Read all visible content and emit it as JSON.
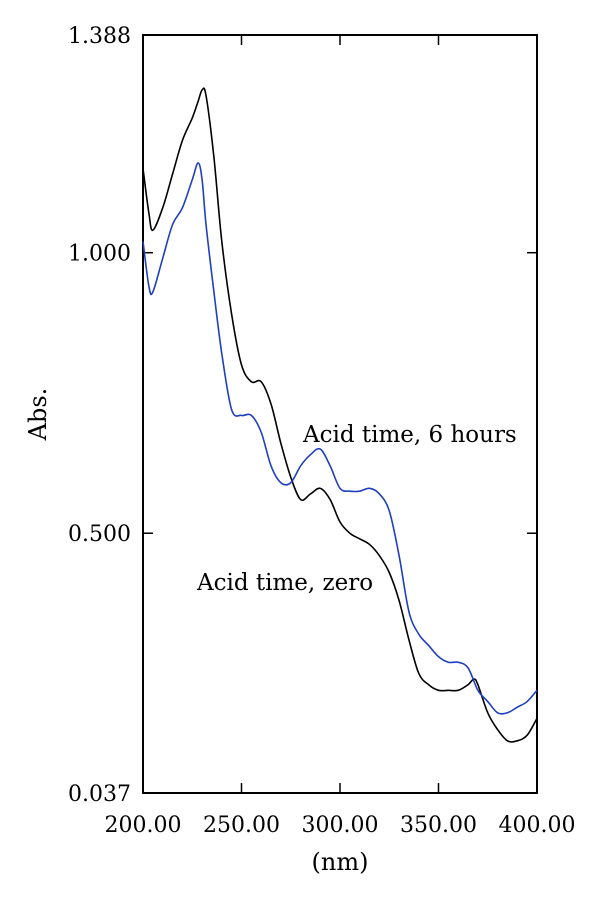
{
  "chart_data": {
    "type": "line",
    "xlabel": "(nm)",
    "ylabel": "Abs.",
    "xlim": [
      200,
      400
    ],
    "ylim": [
      0.037,
      1.388
    ],
    "x_ticks": [
      "200.00",
      "250.00",
      "300.00",
      "350.00",
      "400.00"
    ],
    "y_ticks": [
      "1.388",
      "1.000",
      "0.500",
      "0.037"
    ],
    "y_tick_values": [
      1.388,
      1.0,
      0.5,
      0.037
    ],
    "grid": false,
    "annotations": [
      {
        "text": "Acid time, 6 hours",
        "x": 290,
        "y": 0.625
      },
      {
        "text": "Acid time, zero",
        "x": 250,
        "y": 0.395
      }
    ],
    "series": [
      {
        "color": "#000000",
        "x": [
          200,
          203,
          205,
          210,
          215,
          220,
          225,
          228,
          230,
          232,
          236,
          240,
          245,
          250,
          255,
          260,
          265,
          270,
          275,
          280,
          285,
          290,
          295,
          300,
          305,
          310,
          315,
          320,
          325,
          330,
          335,
          340,
          345,
          350,
          355,
          360,
          365,
          368,
          370,
          375,
          380,
          385,
          390,
          395,
          400
        ],
        "y": [
          1.15,
          1.07,
          1.04,
          1.08,
          1.14,
          1.2,
          1.24,
          1.27,
          1.29,
          1.28,
          1.17,
          1.02,
          0.89,
          0.8,
          0.77,
          0.77,
          0.73,
          0.66,
          0.6,
          0.56,
          0.57,
          0.58,
          0.56,
          0.52,
          0.5,
          0.49,
          0.48,
          0.46,
          0.43,
          0.38,
          0.31,
          0.25,
          0.23,
          0.22,
          0.22,
          0.22,
          0.23,
          0.24,
          0.23,
          0.18,
          0.15,
          0.13,
          0.13,
          0.14,
          0.17
        ]
      },
      {
        "color": "#1f3fbf",
        "x": [
          200,
          203,
          205,
          210,
          215,
          220,
          225,
          228,
          230,
          232,
          236,
          240,
          245,
          250,
          255,
          260,
          265,
          270,
          275,
          280,
          285,
          290,
          295,
          300,
          305,
          310,
          315,
          320,
          325,
          330,
          335,
          340,
          345,
          350,
          355,
          360,
          365,
          370,
          375,
          380,
          385,
          390,
          395,
          400
        ],
        "y": [
          1.02,
          0.94,
          0.93,
          0.99,
          1.05,
          1.08,
          1.13,
          1.16,
          1.13,
          1.05,
          0.93,
          0.82,
          0.72,
          0.71,
          0.71,
          0.68,
          0.62,
          0.59,
          0.59,
          0.62,
          0.64,
          0.65,
          0.62,
          0.58,
          0.575,
          0.575,
          0.58,
          0.57,
          0.54,
          0.46,
          0.36,
          0.32,
          0.3,
          0.28,
          0.27,
          0.27,
          0.26,
          0.22,
          0.2,
          0.18,
          0.18,
          0.19,
          0.2,
          0.22
        ]
      }
    ]
  }
}
